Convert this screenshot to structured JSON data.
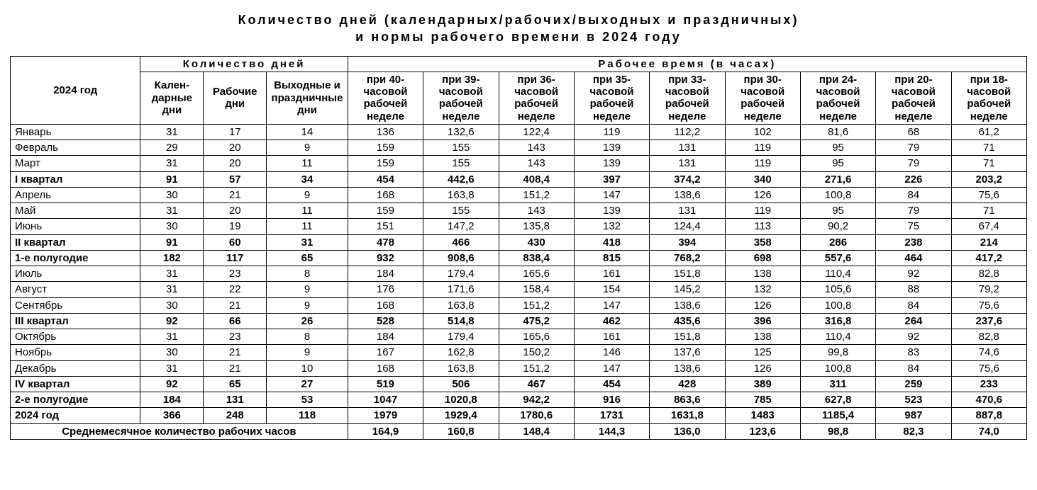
{
  "title_line1": "Количество дней (календарных/рабочих/выходных и праздничных)",
  "title_line2": "и нормы рабочего времени в 2024 году",
  "headers": {
    "year": "2024 год",
    "days_group": "Количество дней",
    "hours_group": "Рабочее время (в часах)",
    "calendar": "Кален-\nдарные дни",
    "work": "Рабочие дни",
    "weekend": "Выходные и праздничные дни",
    "h40": "при 40-часовой рабочей неделе",
    "h39": "при 39-часовой рабочей неделе",
    "h36": "при 36-часовой рабочей неделе",
    "h35": "при 35-часовой рабочей неделе",
    "h33": "при 33-часовой рабочей неделе",
    "h30": "при 30-часовой рабочей неделе",
    "h24": "при 24-часовой рабочей неделе",
    "h20": "при 20-часовой рабочей неделе",
    "h18": "при 18-часовой рабочей неделе"
  },
  "rows": [
    {
      "bold": false,
      "label": "Январь",
      "v": [
        "31",
        "17",
        "14",
        "136",
        "132,6",
        "122,4",
        "119",
        "112,2",
        "102",
        "81,6",
        "68",
        "61,2"
      ]
    },
    {
      "bold": false,
      "label": "Февраль",
      "v": [
        "29",
        "20",
        "9",
        "159",
        "155",
        "143",
        "139",
        "131",
        "119",
        "95",
        "79",
        "71"
      ]
    },
    {
      "bold": false,
      "label": "Март",
      "v": [
        "31",
        "20",
        "11",
        "159",
        "155",
        "143",
        "139",
        "131",
        "119",
        "95",
        "79",
        "71"
      ]
    },
    {
      "bold": true,
      "label": "I квартал",
      "v": [
        "91",
        "57",
        "34",
        "454",
        "442,6",
        "408,4",
        "397",
        "374,2",
        "340",
        "271,6",
        "226",
        "203,2"
      ]
    },
    {
      "bold": false,
      "label": "Апрель",
      "v": [
        "30",
        "21",
        "9",
        "168",
        "163,8",
        "151,2",
        "147",
        "138,6",
        "126",
        "100,8",
        "84",
        "75,6"
      ]
    },
    {
      "bold": false,
      "label": "Май",
      "v": [
        "31",
        "20",
        "11",
        "159",
        "155",
        "143",
        "139",
        "131",
        "119",
        "95",
        "79",
        "71"
      ]
    },
    {
      "bold": false,
      "label": "Июнь",
      "v": [
        "30",
        "19",
        "11",
        "151",
        "147,2",
        "135,8",
        "132",
        "124,4",
        "113",
        "90,2",
        "75",
        "67,4"
      ]
    },
    {
      "bold": true,
      "label": "II квартал",
      "v": [
        "91",
        "60",
        "31",
        "478",
        "466",
        "430",
        "418",
        "394",
        "358",
        "286",
        "238",
        "214"
      ]
    },
    {
      "bold": true,
      "label": "1-е полугодие",
      "v": [
        "182",
        "117",
        "65",
        "932",
        "908,6",
        "838,4",
        "815",
        "768,2",
        "698",
        "557,6",
        "464",
        "417,2"
      ]
    },
    {
      "bold": false,
      "label": "Июль",
      "v": [
        "31",
        "23",
        "8",
        "184",
        "179,4",
        "165,6",
        "161",
        "151,8",
        "138",
        "110,4",
        "92",
        "82,8"
      ]
    },
    {
      "bold": false,
      "label": "Август",
      "v": [
        "31",
        "22",
        "9",
        "176",
        "171,6",
        "158,4",
        "154",
        "145,2",
        "132",
        "105,6",
        "88",
        "79,2"
      ]
    },
    {
      "bold": false,
      "label": "Сентябрь",
      "v": [
        "30",
        "21",
        "9",
        "168",
        "163,8",
        "151,2",
        "147",
        "138,6",
        "126",
        "100,8",
        "84",
        "75,6"
      ]
    },
    {
      "bold": true,
      "label": "III квартал",
      "v": [
        "92",
        "66",
        "26",
        "528",
        "514,8",
        "475,2",
        "462",
        "435,6",
        "396",
        "316,8",
        "264",
        "237,6"
      ]
    },
    {
      "bold": false,
      "label": "Октябрь",
      "v": [
        "31",
        "23",
        "8",
        "184",
        "179,4",
        "165,6",
        "161",
        "151,8",
        "138",
        "110,4",
        "92",
        "82,8"
      ]
    },
    {
      "bold": false,
      "label": "Ноябрь",
      "v": [
        "30",
        "21",
        "9",
        "167",
        "162,8",
        "150,2",
        "146",
        "137,6",
        "125",
        "99,8",
        "83",
        "74,6"
      ]
    },
    {
      "bold": false,
      "label": "Декабрь",
      "v": [
        "31",
        "21",
        "10",
        "168",
        "163,8",
        "151,2",
        "147",
        "138,6",
        "126",
        "100,8",
        "84",
        "75,6"
      ]
    },
    {
      "bold": true,
      "label": "IV квартал",
      "v": [
        "92",
        "65",
        "27",
        "519",
        "506",
        "467",
        "454",
        "428",
        "389",
        "311",
        "259",
        "233"
      ]
    },
    {
      "bold": true,
      "label": "2-е полугодие",
      "v": [
        "184",
        "131",
        "53",
        "1047",
        "1020,8",
        "942,2",
        "916",
        "863,6",
        "785",
        "627,8",
        "523",
        "470,6"
      ]
    },
    {
      "bold": true,
      "label": "2024 год",
      "v": [
        "366",
        "248",
        "118",
        "1979",
        "1929,4",
        "1780,6",
        "1731",
        "1631,8",
        "1483",
        "1185,4",
        "987",
        "887,8"
      ]
    }
  ],
  "footer": {
    "label": "Среднемесячное количество рабочих часов",
    "v": [
      "164,9",
      "160,8",
      "148,4",
      "144,3",
      "136,0",
      "123,6",
      "98,8",
      "82,3",
      "74,0"
    ]
  }
}
